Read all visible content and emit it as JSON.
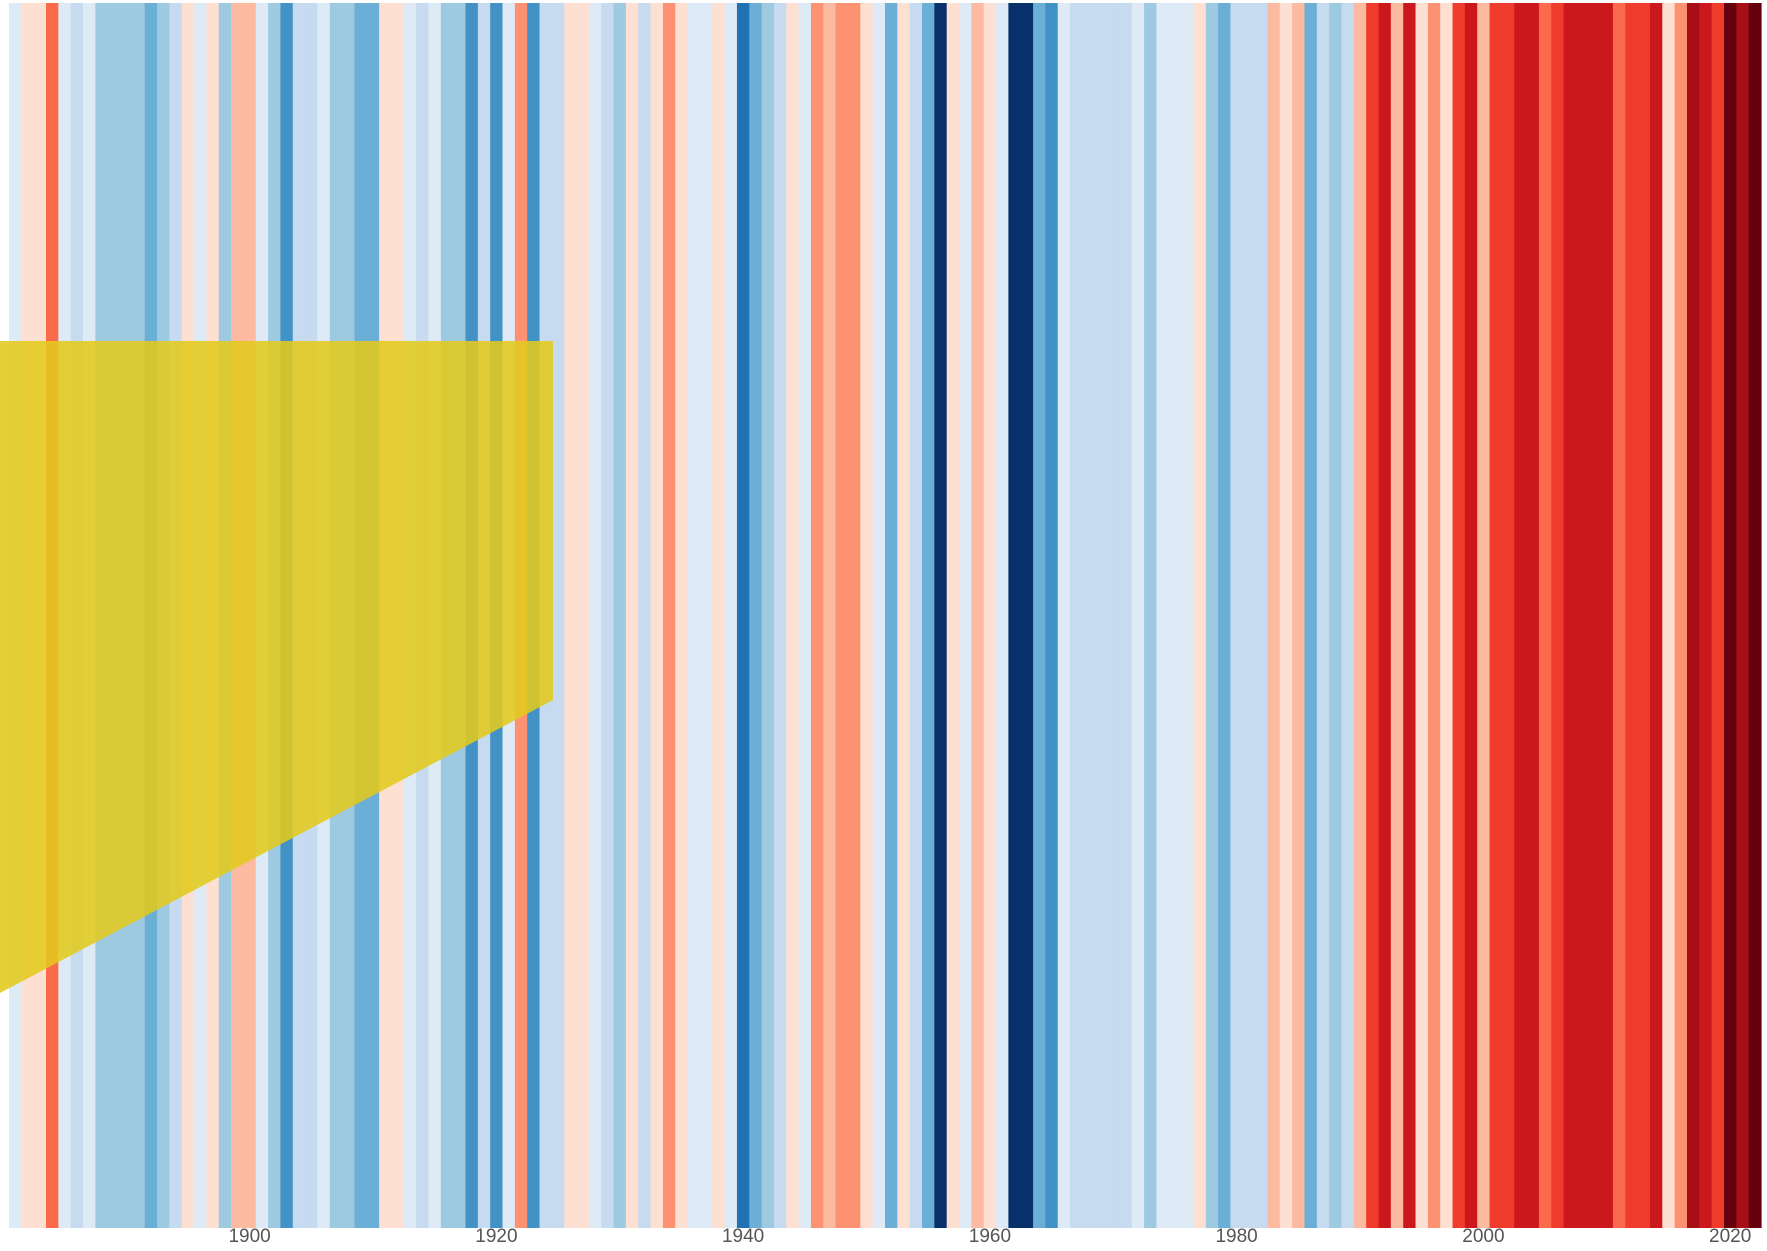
{
  "chart_data": {
    "type": "heatmap",
    "title": "",
    "xlabel": "",
    "ylabel": "",
    "x_range": [
      1881,
      2022
    ],
    "x_ticks": [
      1900,
      1920,
      1940,
      1960,
      1980,
      2000,
      2020
    ],
    "grid": false,
    "legend": "none",
    "color_scale": {
      "min": -3,
      "max": 3,
      "colors": [
        "#08306b",
        "#08519c",
        "#2171b5",
        "#4292c6",
        "#6baed6",
        "#9ecae1",
        "#c6dbef",
        "#deebf7",
        "#fee0d2",
        "#fcbba1",
        "#fc9272",
        "#fb6a4a",
        "#ef3b2c",
        "#cb181d",
        "#a50f15",
        "#67000d"
      ]
    },
    "years": [
      1881,
      1882,
      1883,
      1884,
      1885,
      1886,
      1887,
      1888,
      1889,
      1890,
      1891,
      1892,
      1893,
      1894,
      1895,
      1896,
      1897,
      1898,
      1899,
      1900,
      1901,
      1902,
      1903,
      1904,
      1905,
      1906,
      1907,
      1908,
      1909,
      1910,
      1911,
      1912,
      1913,
      1914,
      1915,
      1916,
      1917,
      1918,
      1919,
      1920,
      1921,
      1922,
      1923,
      1924,
      1925,
      1926,
      1927,
      1928,
      1929,
      1930,
      1931,
      1932,
      1933,
      1934,
      1935,
      1936,
      1937,
      1938,
      1939,
      1940,
      1941,
      1942,
      1943,
      1944,
      1945,
      1946,
      1947,
      1948,
      1949,
      1950,
      1951,
      1952,
      1953,
      1954,
      1955,
      1956,
      1957,
      1958,
      1959,
      1960,
      1961,
      1962,
      1963,
      1964,
      1965,
      1966,
      1967,
      1968,
      1969,
      1970,
      1971,
      1972,
      1973,
      1974,
      1975,
      1976,
      1977,
      1978,
      1979,
      1980,
      1981,
      1982,
      1983,
      1984,
      1985,
      1986,
      1987,
      1988,
      1989,
      1990,
      1991,
      1992,
      1993,
      1994,
      1995,
      1996,
      1997,
      1998,
      1999,
      2000,
      2001,
      2002,
      2003,
      2004,
      2005,
      2006,
      2007,
      2008,
      2009,
      2010,
      2011,
      2012,
      2013,
      2014,
      2015,
      2016,
      2017,
      2018,
      2019,
      2020,
      2021,
      2022
    ],
    "anomalies": [
      -0.1,
      0.2,
      0.3,
      1.4,
      -0.1,
      -0.5,
      -0.3,
      -0.9,
      -0.9,
      -0.9,
      -0.9,
      -1.3,
      -1.0,
      -0.7,
      0.2,
      -0.3,
      0.2,
      -0.9,
      0.5,
      0.6,
      -0.3,
      -0.9,
      -1.7,
      -0.4,
      -0.6,
      -0.2,
      -0.8,
      -1.0,
      -1.2,
      -1.3,
      0.0,
      0.3,
      -0.1,
      -0.5,
      -0.1,
      -0.8,
      -1.0,
      -1.6,
      -0.5,
      -1.7,
      -0.2,
      1.1,
      -1.6,
      -0.6,
      -0.5,
      0.1,
      0.2,
      -0.3,
      -0.5,
      -0.8,
      0.3,
      -0.5,
      0.0,
      0.9,
      0.0,
      -0.2,
      -0.1,
      0.0,
      -0.3,
      -1.9,
      -1.4,
      -1.0,
      -0.6,
      0.2,
      -0.3,
      0.8,
      0.6,
      0.9,
      0.9,
      0.0,
      -0.3,
      -1.2,
      0.0,
      -0.4,
      -1.2,
      -2.7,
      0.0,
      -0.1,
      0.6,
      0.2,
      -0.1,
      -3.0,
      -3.0,
      -1.2,
      -1.8,
      -0.2,
      -0.6,
      -0.6,
      -0.7,
      -0.5,
      -0.7,
      -0.3,
      -1.0,
      -0.3,
      -0.2,
      -0.1,
      0.0,
      -1.1,
      -1.4,
      -0.4,
      -0.4,
      -0.7,
      0.4,
      0.3,
      0.4,
      -1.2,
      -0.5,
      -1.0,
      -0.4,
      0.7,
      1.6,
      1.9,
      0.4,
      1.9,
      0.3,
      0.8,
      0.3,
      1.8,
      2.0,
      0.6,
      1.6,
      1.6,
      2.2,
      2.0,
      1.2,
      1.6,
      1.9,
      2.2,
      2.2,
      2.2,
      1.4,
      1.5,
      1.6,
      2.1,
      0.3,
      0.8,
      2.3,
      1.9,
      1.8,
      2.8,
      2.5,
      2.9
    ]
  }
}
